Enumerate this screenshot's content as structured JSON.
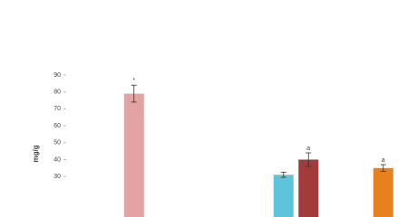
{
  "chart_data": {
    "type": "bar",
    "y_label": "mg/g",
    "categories": [
      null,
      null,
      null,
      null,
      null,
      null,
      null,
      null,
      null,
      null,
      null,
      null,
      null
    ],
    "values": [
      null,
      null,
      79,
      null,
      null,
      null,
      null,
      null,
      31,
      40,
      null,
      null,
      35
    ],
    "errors": [
      null,
      null,
      5,
      null,
      null,
      null,
      null,
      null,
      1.5,
      4,
      null,
      null,
      2
    ],
    "annotations": [
      null,
      null,
      "*",
      null,
      null,
      null,
      null,
      null,
      null,
      "a",
      null,
      null,
      "a"
    ],
    "colors": [
      null,
      null,
      "#e3a3a3",
      null,
      null,
      null,
      null,
      null,
      "#5ec4dc",
      "#a33b3b",
      null,
      null,
      "#e8801e"
    ],
    "ylim": [
      0,
      90
    ],
    "yticks": [
      30,
      40,
      50,
      60,
      70,
      80,
      90
    ],
    "grid": false
  }
}
